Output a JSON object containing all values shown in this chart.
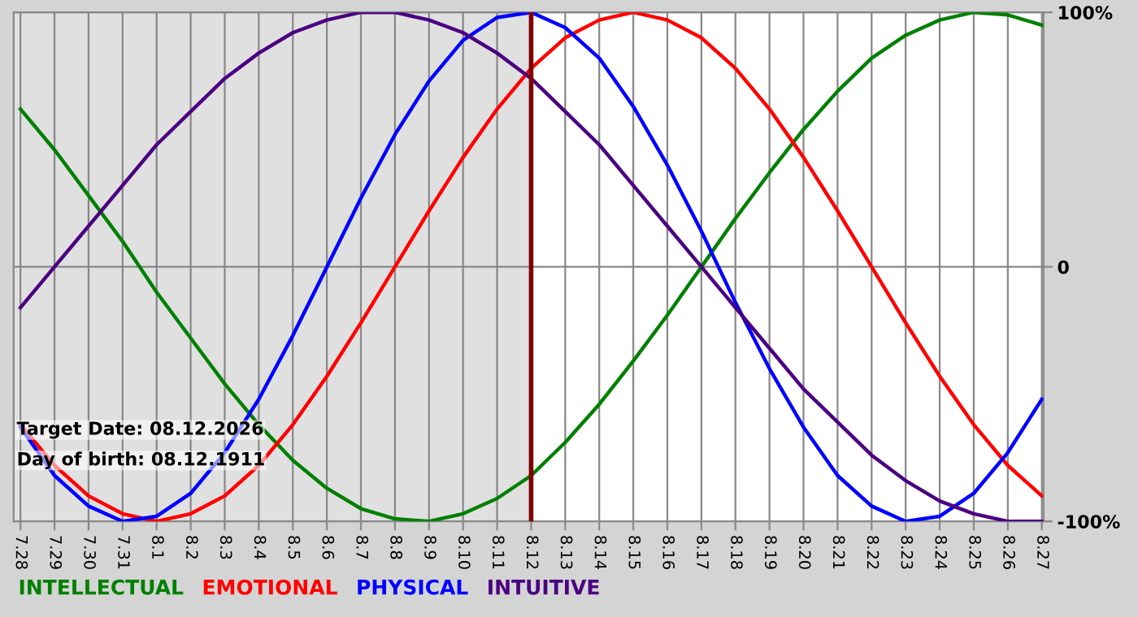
{
  "chart_data": {
    "type": "line",
    "categories": [
      "7.28",
      "7.29",
      "7.30",
      "7.31",
      "8.1",
      "8.2",
      "8.3",
      "8.4",
      "8.5",
      "8.6",
      "8.7",
      "8.8",
      "8.9",
      "8.10",
      "8.11",
      "8.12",
      "8.13",
      "8.14",
      "8.15",
      "8.16",
      "8.17",
      "8.18",
      "8.19",
      "8.20",
      "8.21",
      "8.22",
      "8.23",
      "8.24",
      "8.25",
      "8.26",
      "8.27"
    ],
    "series": [
      {
        "name": "INTELLECTUAL",
        "color": "#008000",
        "values": [
          62,
          46,
          28,
          10,
          -10,
          -28,
          -46,
          -62,
          -76,
          -87,
          -95,
          -99,
          -100,
          -97,
          -91,
          -82,
          -69,
          -54,
          -37,
          -19,
          0,
          19,
          37,
          54,
          69,
          82,
          91,
          97,
          100,
          99,
          95
        ]
      },
      {
        "name": "EMOTIONAL",
        "color": "#ff0000",
        "values": [
          -62,
          -78,
          -90,
          -97,
          -100,
          -97,
          -90,
          -78,
          -62,
          -43,
          -22,
          0,
          22,
          43,
          62,
          78,
          90,
          97,
          100,
          97,
          90,
          78,
          62,
          43,
          22,
          0,
          -22,
          -43,
          -62,
          -78,
          -90
        ]
      },
      {
        "name": "PHYSICAL",
        "color": "#0000ff",
        "values": [
          -63,
          -82,
          -94,
          -100,
          -98,
          -89,
          -73,
          -52,
          -27,
          0,
          27,
          52,
          73,
          89,
          98,
          100,
          94,
          82,
          63,
          40,
          14,
          -14,
          -40,
          -63,
          -82,
          -94,
          -100,
          -98,
          -89,
          -73,
          -52
        ]
      },
      {
        "name": "INTUITIVE",
        "color": "#4b0082",
        "values": [
          -16,
          0,
          16,
          32,
          48,
          61,
          74,
          84,
          92,
          97,
          100,
          100,
          97,
          92,
          84,
          74,
          61,
          48,
          32,
          16,
          0,
          -16,
          -32,
          -48,
          -61,
          -74,
          -84,
          -92,
          -97,
          -100,
          -100
        ]
      }
    ],
    "ylim": [
      -100,
      100
    ],
    "yticks": [
      {
        "value": 100,
        "label": "100%"
      },
      0,
      {
        "value": -100,
        "label": "-100%"
      }
    ],
    "grid": true,
    "legend": "bottom",
    "ref_lines": [
      {
        "axis": "x",
        "value": "8.12",
        "color": "#800000"
      }
    ],
    "bands": [
      {
        "axis": "x",
        "from": "7.28",
        "to": "8.12",
        "color": "#e0e0e0"
      }
    ],
    "annotations": [
      "Target Date: 08.12.2026",
      "Day of birth: 08.12.1911"
    ]
  }
}
